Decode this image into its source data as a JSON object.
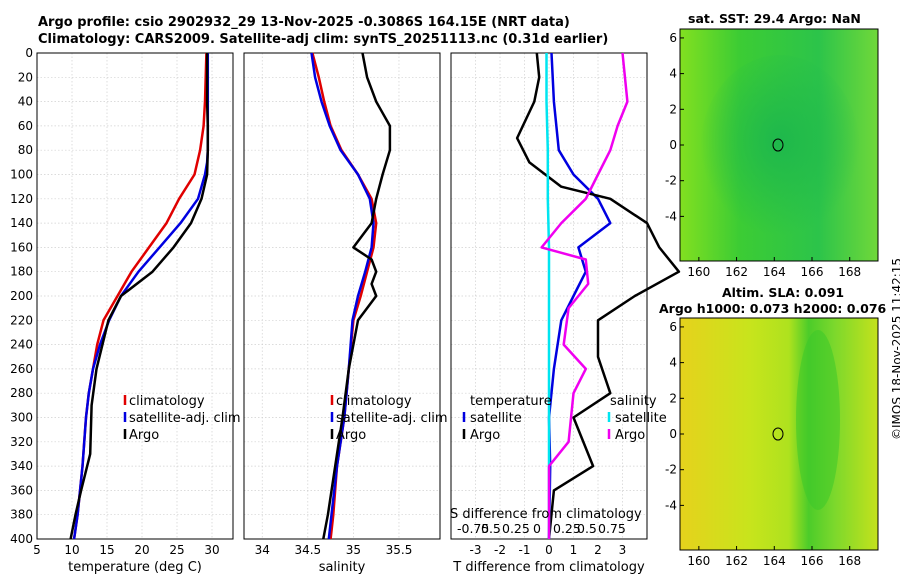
{
  "header": {
    "line1": "Argo profile: csio 2902932_29 13-Nov-2025 -0.3086S 164.15E (NRT data)",
    "line2": "Climatology: CARS2009. Satellite-adj clim: synTS_20251113.nc (0.31d earlier)"
  },
  "colors": {
    "climatology": "#e00000",
    "satellite": "#0000e0",
    "argo": "#000000",
    "sat_s": "#00e5f0",
    "argo_s": "#f000f0"
  },
  "chart_data": [
    {
      "type": "line",
      "name": "temperature-profile",
      "xlabel": "temperature (deg C)",
      "ylabel": "",
      "xlim": [
        5,
        33
      ],
      "ylim": [
        400,
        0
      ],
      "xticks": [
        5,
        10,
        15,
        20,
        25,
        30
      ],
      "yticks": [
        0,
        20,
        40,
        60,
        80,
        100,
        120,
        140,
        160,
        180,
        200,
        220,
        240,
        260,
        280,
        300,
        320,
        340,
        360,
        380,
        400
      ],
      "legend": [
        "climatology",
        "satellite-adj. clim",
        "Argo"
      ],
      "series": [
        {
          "name": "climatology",
          "color": "#e00000",
          "points": [
            [
              29.2,
              0
            ],
            [
              29.1,
              20
            ],
            [
              29.0,
              40
            ],
            [
              28.8,
              60
            ],
            [
              28.3,
              80
            ],
            [
              27.5,
              100
            ],
            [
              25.3,
              120
            ],
            [
              23.5,
              140
            ],
            [
              21.0,
              160
            ],
            [
              18.5,
              180
            ],
            [
              16.5,
              200
            ],
            [
              14.5,
              220
            ],
            [
              13.6,
              240
            ],
            [
              13.0,
              260
            ],
            [
              12.4,
              280
            ],
            [
              12.0,
              300
            ],
            [
              11.5,
              340
            ],
            [
              10.8,
              380
            ],
            [
              10.3,
              400
            ]
          ]
        },
        {
          "name": "satellite-adj. clim",
          "color": "#0000e0",
          "points": [
            [
              29.4,
              0
            ],
            [
              29.4,
              20
            ],
            [
              29.4,
              40
            ],
            [
              29.4,
              60
            ],
            [
              29.4,
              80
            ],
            [
              29.3,
              90
            ],
            [
              29.0,
              100
            ],
            [
              28.0,
              120
            ],
            [
              25.5,
              140
            ],
            [
              22.5,
              160
            ],
            [
              19.5,
              180
            ],
            [
              17.0,
              200
            ],
            [
              15.3,
              220
            ],
            [
              14.0,
              240
            ],
            [
              13.0,
              260
            ],
            [
              12.4,
              280
            ],
            [
              12.0,
              300
            ],
            [
              11.5,
              340
            ],
            [
              10.8,
              380
            ],
            [
              10.3,
              400
            ]
          ]
        },
        {
          "name": "Argo",
          "color": "#000000",
          "points": [
            [
              29.3,
              0
            ],
            [
              29.3,
              20
            ],
            [
              29.3,
              40
            ],
            [
              29.4,
              60
            ],
            [
              29.4,
              80
            ],
            [
              29.3,
              100
            ],
            [
              28.5,
              120
            ],
            [
              27.0,
              140
            ],
            [
              24.5,
              160
            ],
            [
              21.5,
              180
            ],
            [
              17.0,
              200
            ],
            [
              15.2,
              220
            ],
            [
              13.5,
              260
            ],
            [
              12.8,
              290
            ],
            [
              12.6,
              330
            ],
            [
              11.3,
              360
            ],
            [
              10.5,
              380
            ],
            [
              9.8,
              400
            ]
          ]
        }
      ]
    },
    {
      "type": "line",
      "name": "salinity-profile",
      "xlabel": "salinity",
      "ylabel": "",
      "xlim": [
        33.8,
        35.95
      ],
      "xticks": [
        34,
        34.5,
        35,
        35.5
      ],
      "legend": [
        "climatology",
        "satellite-adj. clim",
        "Argo"
      ],
      "series": [
        {
          "name": "climatology",
          "color": "#e00000",
          "points": [
            [
              34.55,
              0
            ],
            [
              34.62,
              20
            ],
            [
              34.68,
              40
            ],
            [
              34.75,
              60
            ],
            [
              34.87,
              80
            ],
            [
              35.05,
              100
            ],
            [
              35.2,
              120
            ],
            [
              35.25,
              140
            ],
            [
              35.22,
              160
            ],
            [
              35.15,
              180
            ],
            [
              35.08,
              200
            ],
            [
              35.0,
              220
            ],
            [
              34.95,
              260
            ],
            [
              34.9,
              300
            ],
            [
              34.82,
              340
            ],
            [
              34.78,
              380
            ],
            [
              34.75,
              400
            ]
          ]
        },
        {
          "name": "satellite-adj. clim",
          "color": "#0000e0",
          "points": [
            [
              34.54,
              0
            ],
            [
              34.58,
              20
            ],
            [
              34.65,
              40
            ],
            [
              34.74,
              60
            ],
            [
              34.86,
              80
            ],
            [
              35.05,
              100
            ],
            [
              35.18,
              120
            ],
            [
              35.22,
              140
            ],
            [
              35.2,
              160
            ],
            [
              35.13,
              180
            ],
            [
              35.05,
              200
            ],
            [
              34.99,
              220
            ],
            [
              34.95,
              260
            ],
            [
              34.9,
              300
            ],
            [
              34.82,
              340
            ],
            [
              34.76,
              380
            ],
            [
              34.73,
              400
            ]
          ]
        },
        {
          "name": "Argo",
          "color": "#000000",
          "points": [
            [
              35.1,
              0
            ],
            [
              35.15,
              20
            ],
            [
              35.25,
              40
            ],
            [
              35.4,
              60
            ],
            [
              35.4,
              80
            ],
            [
              35.32,
              100
            ],
            [
              35.25,
              120
            ],
            [
              35.2,
              140
            ],
            [
              35.0,
              160
            ],
            [
              35.2,
              170
            ],
            [
              35.25,
              180
            ],
            [
              35.2,
              190
            ],
            [
              35.25,
              200
            ],
            [
              35.05,
              220
            ],
            [
              34.95,
              260
            ],
            [
              34.88,
              300
            ],
            [
              34.8,
              340
            ],
            [
              34.72,
              380
            ],
            [
              34.67,
              400
            ]
          ]
        }
      ]
    },
    {
      "type": "line",
      "name": "difference-profile",
      "xlabel": "T difference from climatology",
      "secondary_label": "S difference from climatology",
      "secondary_ticks": [
        "-0.75",
        "0.5",
        "0.25",
        "0",
        "0.25",
        "0.5",
        "0.75"
      ],
      "xlim": [
        -4,
        4
      ],
      "xticks": [
        -3,
        -2,
        -1,
        0,
        1,
        2,
        3
      ],
      "legend_left_title": "temperature",
      "legend_right_title": "salinity",
      "legend_left": [
        "satellite",
        "Argo"
      ],
      "legend_right": [
        "satellite",
        "Argo"
      ],
      "series": [
        {
          "name": "T satellite",
          "color": "#0000e0",
          "points": [
            [
              0.1,
              0
            ],
            [
              0.2,
              40
            ],
            [
              0.4,
              80
            ],
            [
              1.0,
              100
            ],
            [
              2.0,
              120
            ],
            [
              2.5,
              140
            ],
            [
              1.2,
              160
            ],
            [
              1.5,
              180
            ],
            [
              1.0,
              200
            ],
            [
              0.5,
              220
            ],
            [
              0.2,
              260
            ],
            [
              0.0,
              300
            ],
            [
              0.05,
              340
            ],
            [
              0.0,
              400
            ]
          ]
        },
        {
          "name": "T Argo",
          "color": "#000000",
          "points": [
            [
              -0.5,
              0
            ],
            [
              -0.4,
              20
            ],
            [
              -0.6,
              40
            ],
            [
              -1.3,
              70
            ],
            [
              -0.8,
              90
            ],
            [
              0.5,
              110
            ],
            [
              2.5,
              120
            ],
            [
              4.0,
              140
            ],
            [
              4.5,
              160
            ],
            [
              5.3,
              180
            ],
            [
              3.5,
              200
            ],
            [
              2.0,
              220
            ],
            [
              2.0,
              250
            ],
            [
              2.5,
              280
            ],
            [
              1.0,
              300
            ],
            [
              1.8,
              340
            ],
            [
              0.2,
              360
            ],
            [
              0.0,
              400
            ]
          ]
        },
        {
          "name": "S satellite",
          "color": "#00e5f0",
          "points": [
            [
              -0.1,
              0
            ],
            [
              -0.1,
              40
            ],
            [
              -0.05,
              80
            ],
            [
              -0.05,
              120
            ],
            [
              0.0,
              160
            ],
            [
              0.0,
              220
            ],
            [
              0.0,
              300
            ],
            [
              0.0,
              400
            ]
          ]
        },
        {
          "name": "S Argo",
          "color": "#f000f0",
          "points": [
            [
              3.0,
              0
            ],
            [
              3.2,
              40
            ],
            [
              2.8,
              60
            ],
            [
              2.5,
              80
            ],
            [
              2.0,
              100
            ],
            [
              1.5,
              120
            ],
            [
              0.5,
              140
            ],
            [
              -0.3,
              160
            ],
            [
              1.5,
              170
            ],
            [
              1.6,
              190
            ],
            [
              0.8,
              210
            ],
            [
              0.6,
              240
            ],
            [
              1.5,
              260
            ],
            [
              1.0,
              280
            ],
            [
              0.8,
              320
            ],
            [
              0.0,
              340
            ],
            [
              0.0,
              400
            ]
          ]
        }
      ]
    },
    {
      "type": "heatmap",
      "name": "sst-map",
      "title": "sat. SST: 29.4 Argo: NaN",
      "xlim": [
        159,
        169.5
      ],
      "ylim": [
        -6.5,
        6.5
      ],
      "xticks": [
        160,
        162,
        164,
        166,
        168
      ],
      "yticks": [
        6,
        4,
        2,
        0,
        -2,
        -4
      ]
    },
    {
      "type": "heatmap",
      "name": "sla-map",
      "title": "Altim. SLA: 0.091",
      "subtitle": "Argo h1000: 0.073 h2000: 0.076",
      "xlim": [
        159,
        169.5
      ],
      "ylim": [
        -6.5,
        6.5
      ],
      "xticks": [
        160,
        162,
        164,
        166,
        168
      ],
      "yticks": [
        6,
        4,
        2,
        0,
        -2,
        -4
      ]
    }
  ],
  "stamp": "©IMOS 18-Nov-2025 11:42:15"
}
